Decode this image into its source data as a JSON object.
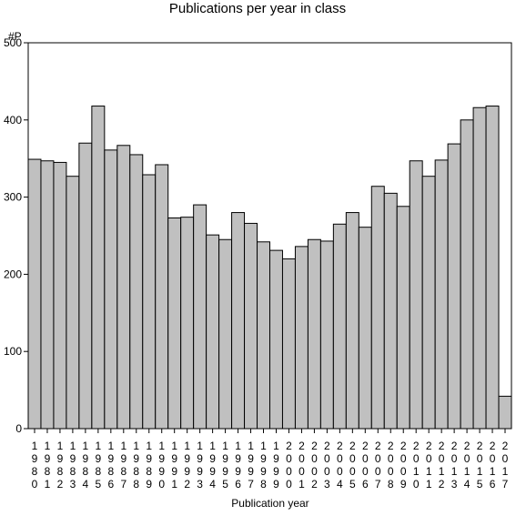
{
  "chart_data": {
    "type": "bar",
    "title": "Publications per year in class",
    "ylabel": "#P",
    "xlabel": "Publication year",
    "ylim": [
      0,
      500
    ],
    "yticks": [
      0,
      100,
      200,
      300,
      400,
      500
    ],
    "grid": false,
    "bar_color": "#c0c0c0",
    "categories": [
      "1980",
      "1981",
      "1982",
      "1983",
      "1984",
      "1985",
      "1986",
      "1987",
      "1988",
      "1989",
      "1990",
      "1991",
      "1992",
      "1993",
      "1994",
      "1995",
      "1996",
      "1997",
      "1998",
      "1999",
      "2000",
      "2001",
      "2002",
      "2003",
      "2004",
      "2005",
      "2006",
      "2007",
      "2008",
      "2009",
      "2010",
      "2011",
      "2012",
      "2013",
      "2014",
      "2015",
      "2016",
      "2017"
    ],
    "values": [
      349,
      347,
      345,
      327,
      370,
      418,
      361,
      367,
      355,
      329,
      342,
      273,
      274,
      290,
      251,
      245,
      280,
      266,
      242,
      231,
      220,
      236,
      245,
      243,
      265,
      280,
      261,
      314,
      305,
      288,
      347,
      327,
      348,
      369,
      400,
      416,
      418,
      42
    ]
  }
}
